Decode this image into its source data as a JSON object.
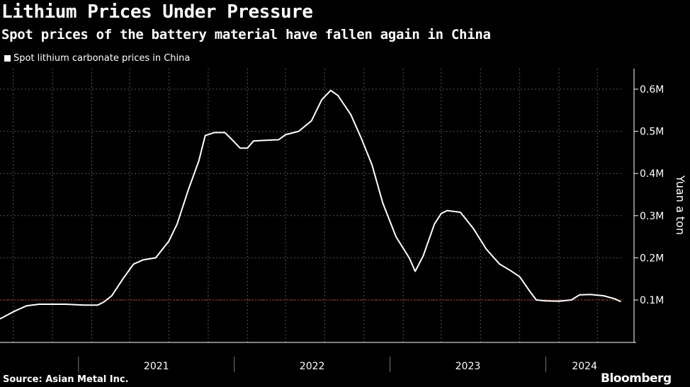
{
  "title": "Lithium Prices Under Pressure",
  "subtitle": "Spot prices of the battery material have fallen again in China",
  "legend_label": "Spot lithium carbonate prices in China",
  "source": "Source: Asian Metal Inc.",
  "brand": "Bloomberg",
  "colors": {
    "background": "#000000",
    "line": "#ffffff",
    "reference_line": "#c0392b",
    "grid": "#555555"
  },
  "chart_data": {
    "type": "line",
    "title": "Lithium Prices Under Pressure",
    "subtitle": "Spot prices of the battery material have fallen again in China",
    "ylabel": "Yuan a ton",
    "y_ticks": [
      100000,
      200000,
      300000,
      400000,
      500000,
      600000
    ],
    "y_tick_labels": [
      "0.1M",
      "0.2M",
      "0.3M",
      "0.4M",
      "0.5M",
      "0.6M"
    ],
    "ylim": [
      0,
      650000
    ],
    "xlim": [
      "2020-07-01",
      "2024-07-01"
    ],
    "x_tick_labels": [
      {
        "label": "2021",
        "date": "2021-01-01"
      },
      {
        "label": "2022",
        "date": "2022-01-01"
      },
      {
        "label": "2023",
        "date": "2023-01-01"
      },
      {
        "label": "2024",
        "date": "2024-01-01"
      }
    ],
    "year_boundaries": [
      "2021-01-01",
      "2022-01-01",
      "2023-01-01",
      "2024-01-01"
    ],
    "reference_line": 100000,
    "grid": true,
    "legend_position": "top-left",
    "y_axis_position": "right",
    "series": [
      {
        "name": "Spot lithium carbonate prices in China",
        "points": [
          [
            "2020-07-01",
            55000
          ],
          [
            "2020-08-01",
            72000
          ],
          [
            "2020-09-01",
            86000
          ],
          [
            "2020-10-01",
            90000
          ],
          [
            "2020-12-01",
            90000
          ],
          [
            "2021-01-15",
            88000
          ],
          [
            "2021-02-15",
            88000
          ],
          [
            "2021-03-01",
            95000
          ],
          [
            "2021-03-20",
            110000
          ],
          [
            "2021-04-15",
            150000
          ],
          [
            "2021-05-10",
            185000
          ],
          [
            "2021-06-01",
            195000
          ],
          [
            "2021-07-01",
            200000
          ],
          [
            "2021-08-01",
            240000
          ],
          [
            "2021-08-20",
            280000
          ],
          [
            "2021-09-15",
            360000
          ],
          [
            "2021-10-10",
            430000
          ],
          [
            "2021-10-25",
            490000
          ],
          [
            "2021-11-15",
            497000
          ],
          [
            "2021-12-10",
            497000
          ],
          [
            "2021-12-25",
            482000
          ],
          [
            "2022-01-15",
            460000
          ],
          [
            "2022-02-01",
            460000
          ],
          [
            "2022-02-15",
            477000
          ],
          [
            "2022-03-01",
            478000
          ],
          [
            "2022-04-15",
            480000
          ],
          [
            "2022-05-01",
            492000
          ],
          [
            "2022-06-01",
            500000
          ],
          [
            "2022-07-01",
            525000
          ],
          [
            "2022-07-25",
            575000
          ],
          [
            "2022-08-15",
            597000
          ],
          [
            "2022-09-01",
            585000
          ],
          [
            "2022-10-01",
            540000
          ],
          [
            "2022-10-25",
            485000
          ],
          [
            "2022-11-20",
            420000
          ],
          [
            "2022-12-15",
            330000
          ],
          [
            "2023-01-15",
            250000
          ],
          [
            "2023-02-15",
            200000
          ],
          [
            "2023-03-01",
            168000
          ],
          [
            "2023-03-20",
            205000
          ],
          [
            "2023-04-15",
            280000
          ],
          [
            "2023-05-01",
            305000
          ],
          [
            "2023-05-15",
            312000
          ],
          [
            "2023-06-15",
            308000
          ],
          [
            "2023-07-15",
            270000
          ],
          [
            "2023-08-15",
            220000
          ],
          [
            "2023-09-15",
            185000
          ],
          [
            "2023-10-10",
            170000
          ],
          [
            "2023-11-01",
            155000
          ],
          [
            "2023-11-25",
            120000
          ],
          [
            "2023-12-10",
            100000
          ],
          [
            "2024-01-01",
            98000
          ],
          [
            "2024-02-01",
            97000
          ],
          [
            "2024-03-01",
            100000
          ],
          [
            "2024-03-20",
            112000
          ],
          [
            "2024-04-15",
            113000
          ],
          [
            "2024-05-15",
            110000
          ],
          [
            "2024-06-10",
            103000
          ],
          [
            "2024-06-25",
            96000
          ]
        ]
      }
    ]
  }
}
